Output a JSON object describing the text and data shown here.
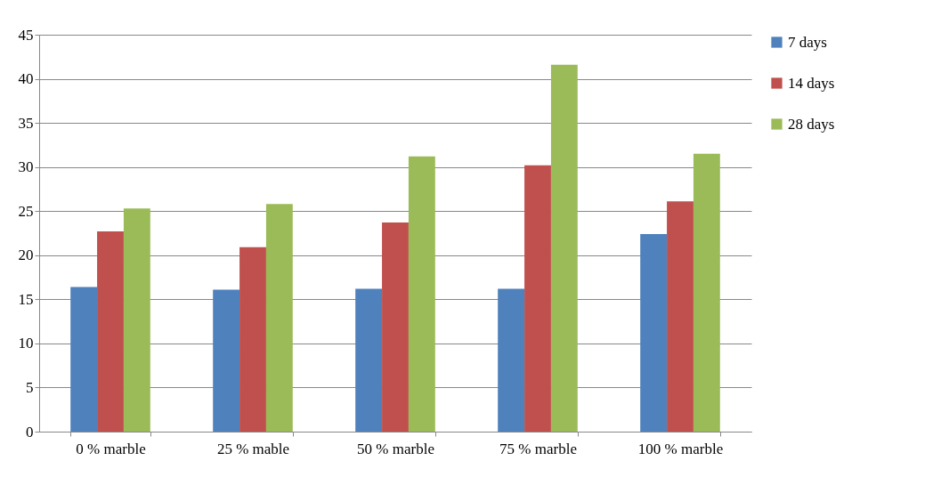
{
  "chart_data": {
    "type": "bar",
    "categories": [
      "0 % marble",
      "25 % mable",
      "50 % marble",
      "75 % marble",
      "100 % marble"
    ],
    "series": [
      {
        "name": "7 days",
        "color": "#4f81bd",
        "values": [
          16.4,
          16.1,
          16.2,
          16.2,
          22.4
        ]
      },
      {
        "name": "14 days",
        "color": "#c0504d",
        "values": [
          22.7,
          20.9,
          23.7,
          30.2,
          26.1
        ]
      },
      {
        "name": "28 days",
        "color": "#9bbb59",
        "values": [
          25.3,
          25.8,
          31.2,
          41.6,
          31.5
        ]
      }
    ],
    "ylim": [
      0,
      45
    ],
    "yticks": [
      0,
      5,
      10,
      15,
      20,
      25,
      30,
      35,
      40,
      45
    ],
    "grid": "y",
    "legend": "right"
  }
}
